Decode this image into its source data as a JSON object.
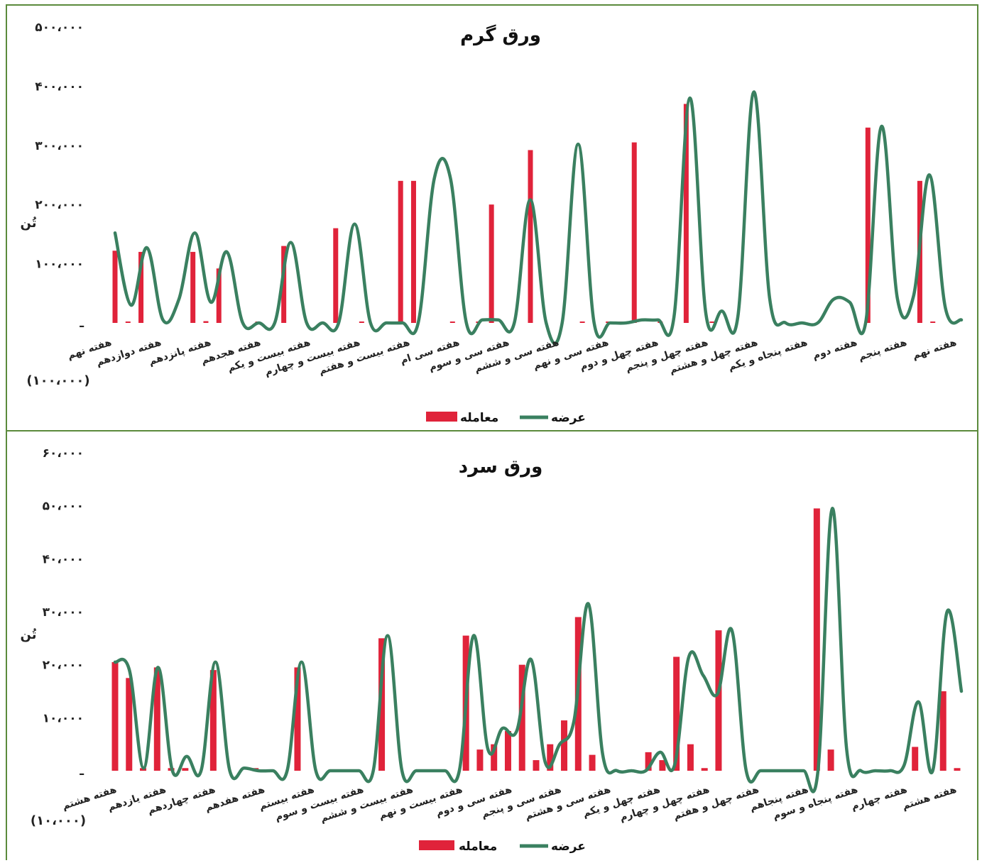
{
  "colors": {
    "bar": "#e0233a",
    "line": "#3a8060",
    "frame": "#5b8a3c"
  },
  "chart_data": [
    {
      "type": "bar",
      "title": "ورق گرم",
      "y_axis_title": "تُن",
      "unit_label": "(۱۰۰،۰۰۰)",
      "ylim": [
        0,
        500000
      ],
      "yticks": [
        "ـ",
        "۱۰۰،۰۰۰",
        "۲۰۰،۰۰۰",
        "۳۰۰،۰۰۰",
        "۴۰۰،۰۰۰",
        "۵۰۰،۰۰۰"
      ],
      "legend": {
        "bar": "معامله",
        "line": "عرضه"
      },
      "x_labels": [
        "هفته نهم",
        "هفته دوازدهم",
        "هفته پانزدهم",
        "هفته هجدهم",
        "هفته بیست و یکم",
        "هفته بیست و چهارم",
        "هفته بیست و هفتم",
        "هفته سی ام",
        "هفته سی و سوم",
        "هفته سی و ششم",
        "هفته سی و نهم",
        "هفته چهل و دوم",
        "هفته چهل و پنجم",
        "هفته چهل و هشتم",
        "هفته پنجاه و یکم",
        "هفته دوم",
        "هفته پنجم",
        "هفته نهم"
      ],
      "series": [
        {
          "name": "معامله",
          "kind": "bar",
          "values": [
            122000,
            2000,
            120000,
            0,
            2000,
            0,
            120000,
            3000,
            92000,
            0,
            0,
            2000,
            0,
            130000,
            0,
            0,
            0,
            160000,
            0,
            2000,
            0,
            2000,
            240000,
            240000,
            0,
            0,
            2000,
            0,
            2000,
            200000,
            0,
            0,
            292000,
            0,
            0,
            0,
            2000,
            0,
            2000,
            2000,
            305000,
            0,
            2000,
            0,
            370000,
            0,
            2000,
            0,
            0,
            0,
            0,
            0,
            0,
            0,
            0,
            0,
            0,
            0,
            330000,
            0,
            0,
            0,
            240000,
            2000,
            0
          ]
        },
        {
          "name": "عرضه",
          "kind": "line",
          "values": [
            152000,
            30000,
            127000,
            5000,
            40000,
            152000,
            35000,
            120000,
            0,
            0,
            0,
            136000,
            0,
            0,
            0,
            167000,
            0,
            0,
            0,
            2000,
            245000,
            245000,
            0,
            5000,
            5000,
            0,
            208000,
            0,
            0,
            302000,
            0,
            0,
            0,
            5000,
            5000,
            10000,
            380000,
            15000,
            20000,
            10000,
            390000,
            40000,
            0,
            0,
            0,
            40000,
            35000,
            0,
            332000,
            40000,
            45000,
            250000,
            25000,
            5000
          ]
        }
      ]
    },
    {
      "type": "bar",
      "title": "ورق سرد",
      "y_axis_title": "تُن",
      "unit_label": "(۱۰،۰۰۰)",
      "ylim": [
        0,
        60000
      ],
      "yticks": [
        "ـ",
        "۱۰،۰۰۰",
        "۲۰،۰۰۰",
        "۳۰،۰۰۰",
        "۴۰،۰۰۰",
        "۵۰،۰۰۰",
        "۶۰،۰۰۰"
      ],
      "legend": {
        "bar": "معامله",
        "line": "عرضه"
      },
      "x_labels": [
        "هفته هشتم",
        "هفته یازدهم",
        "هفته چهاردهم",
        "هفته هفدهم",
        "هفته بیستم",
        "هفته بیست و سوم",
        "هفته بیست و ششم",
        "هفته بیست و نهم",
        "هفته سی و دوم",
        "هفته سی و پنجم",
        "هفته سی و هشتم",
        "هفته چهل و یکم",
        "هفته چهل و چهارم",
        "هفته چهل و هفتم",
        "هفته پنجاهم",
        "هفته پنجاه و سوم",
        "هفته چهارم",
        "هفته هشتم"
      ],
      "series": [
        {
          "name": "معامله",
          "kind": "bar",
          "values": [
            20500,
            17500,
            500,
            19500,
            500,
            500,
            0,
            19000,
            0,
            0,
            500,
            0,
            0,
            19500,
            0,
            0,
            0,
            0,
            0,
            25000,
            0,
            0,
            0,
            0,
            0,
            25500,
            4000,
            5000,
            7500,
            20000,
            2000,
            5000,
            9500,
            29000,
            3000,
            0,
            0,
            0,
            3500,
            2000,
            21500,
            5000,
            500,
            26500,
            0,
            0,
            0,
            0,
            0,
            0,
            49500,
            4000,
            0,
            0,
            0,
            0,
            0,
            4500,
            0,
            15000,
            500
          ]
        },
        {
          "name": "عرضه",
          "kind": "line",
          "values": [
            20500,
            19000,
            500,
            19500,
            0,
            2700,
            0,
            20500,
            0,
            500,
            0,
            0,
            0,
            20500,
            0,
            0,
            0,
            0,
            0,
            25500,
            0,
            0,
            0,
            0,
            0,
            25500,
            4000,
            8000,
            7500,
            21000,
            1500,
            5000,
            9500,
            31500,
            3000,
            0,
            0,
            0,
            3500,
            1000,
            21500,
            18000,
            14500,
            26500,
            0,
            0,
            0,
            0,
            0,
            0,
            49500,
            4000,
            0,
            0,
            0,
            1000,
            13000,
            0,
            30000,
            15000
          ]
        }
      ]
    }
  ]
}
